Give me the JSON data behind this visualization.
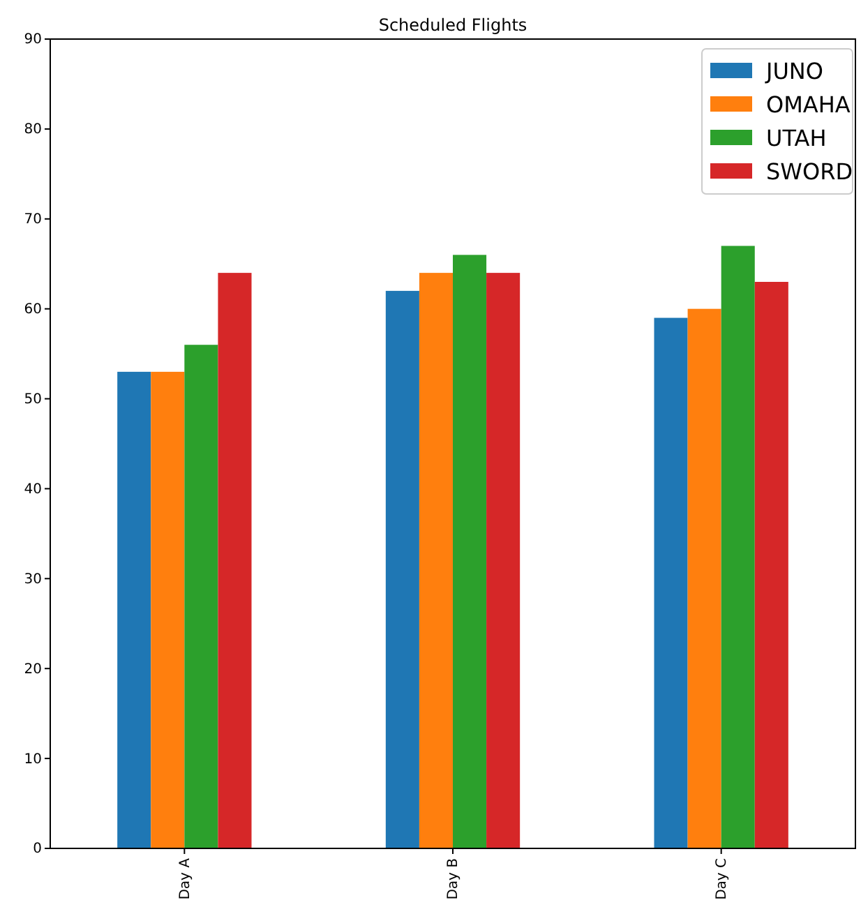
{
  "chart_data": {
    "type": "bar",
    "title": "Scheduled Flights",
    "categories": [
      "Day A",
      "Day B",
      "Day C"
    ],
    "series": [
      {
        "name": "JUNO",
        "color": "#1f77b4",
        "values": [
          53,
          62,
          59
        ]
      },
      {
        "name": "OMAHA",
        "color": "#ff7f0e",
        "values": [
          53,
          64,
          60
        ]
      },
      {
        "name": "UTAH",
        "color": "#2ca02c",
        "values": [
          56,
          66,
          67
        ]
      },
      {
        "name": "SWORD",
        "color": "#d62728",
        "values": [
          64,
          64,
          63
        ]
      }
    ],
    "ylim": [
      0,
      90
    ],
    "yticks": [
      0,
      10,
      20,
      30,
      40,
      50,
      60,
      70,
      80,
      90
    ],
    "grid": false,
    "legend": "top right"
  }
}
